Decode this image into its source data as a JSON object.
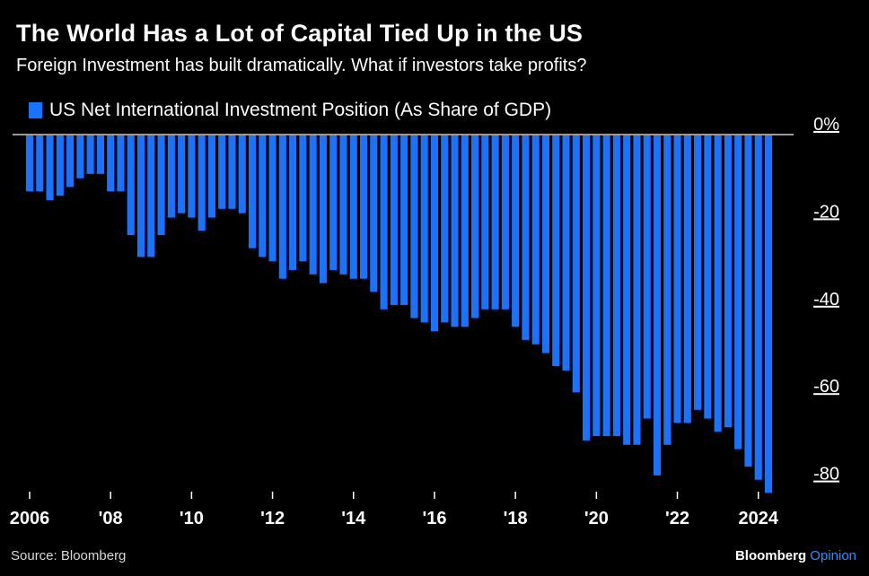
{
  "header": {
    "title": "The World Has a Lot of Capital Tied Up in the US",
    "subtitle": "Foreign Investment has built dramatically. What if investors take profits?"
  },
  "footer": {
    "source": "Source: Bloomberg",
    "brand_main": "Bloomberg",
    "brand_accent": "Opinion"
  },
  "colors": {
    "background": "#000000",
    "bar": "#1a73ff",
    "zero_line": "#9a9a9a",
    "text": "#ffffff"
  },
  "chart_data": {
    "type": "bar",
    "legend": "US Net International Investment Position (As Share of GDP)",
    "legend_position": "top-left",
    "y_axis_side": "right",
    "ylim": [
      -84,
      0
    ],
    "yticks": [
      0,
      -20,
      -40,
      -60,
      -80
    ],
    "ytick_labels": [
      "0%",
      "-20",
      "-40",
      "-60",
      "-80"
    ],
    "x_tick_positions": [
      2006,
      2008,
      2010,
      2012,
      2014,
      2016,
      2018,
      2020,
      2022,
      2024
    ],
    "x_tick_labels": [
      "2006",
      "'08",
      "'10",
      "'12",
      "'14",
      "'16",
      "'18",
      "'20",
      "'22",
      "2024"
    ],
    "x_start": 2006,
    "frequency": "quarterly",
    "series": [
      {
        "values": [
          -13,
          -13,
          -15,
          -14,
          -12,
          -10,
          -9,
          -9,
          -13,
          -13,
          -23,
          -28,
          -28,
          -23,
          -19,
          -18,
          -19,
          -22,
          -19,
          -17,
          -17,
          -18,
          -26,
          -28,
          -29,
          -33,
          -31,
          -29,
          -32,
          -34,
          -31,
          -32,
          -33,
          -33,
          -36,
          -40,
          -39,
          -39,
          -42,
          -43,
          -45,
          -43,
          -44,
          -44,
          -42,
          -40,
          -40,
          -40,
          -44,
          -47,
          -48,
          -50,
          -53,
          -54,
          -59,
          -70,
          -69,
          -69,
          -69,
          -71,
          -71,
          -65,
          -78,
          -71,
          -66,
          -66,
          -63,
          -65,
          -68,
          -67,
          -72,
          -76,
          -79,
          -82
        ]
      }
    ]
  }
}
